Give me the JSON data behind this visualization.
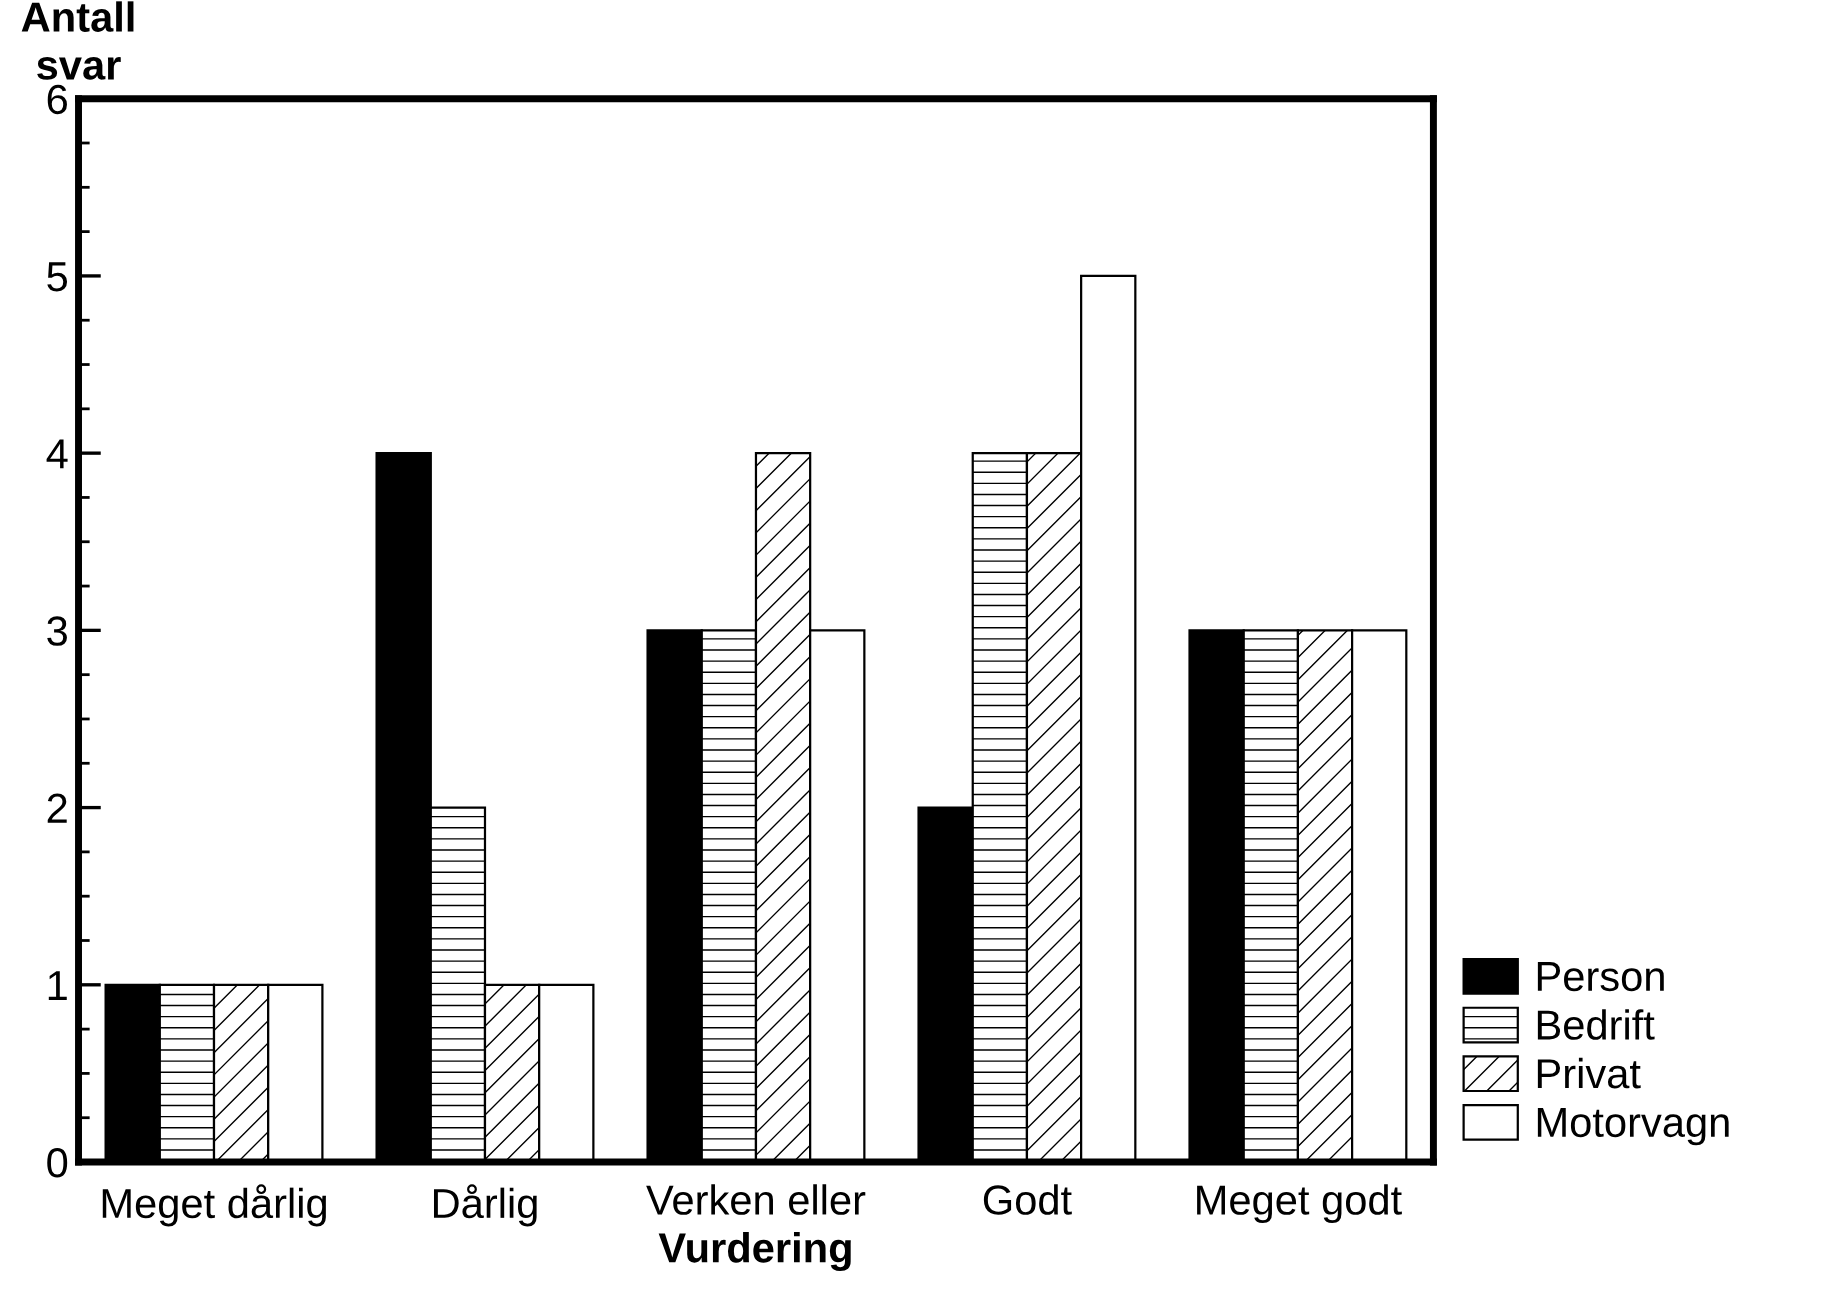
{
  "chart_data": {
    "type": "bar",
    "xlabel": "Vurdering",
    "ylabel": "Antall\nsvar",
    "categories": [
      "Meget dårlig",
      "Dårlig",
      "Verken eller",
      "Godt",
      "Meget godt"
    ],
    "series": [
      {
        "name": "Person",
        "color": "#000000",
        "values": [
          1,
          4,
          3,
          2,
          3
        ]
      },
      {
        "name": "Bedrift",
        "color": "#ffffff",
        "values": [
          1,
          2,
          3,
          4,
          3
        ]
      },
      {
        "name": "Privat",
        "color": "#ffffff",
        "values": [
          1,
          1,
          4,
          4,
          3
        ]
      },
      {
        "name": "Motorvagn",
        "color": "#ffffff",
        "values": [
          1,
          1,
          3,
          5,
          3
        ]
      }
    ],
    "ylim": [
      0,
      6
    ],
    "yticks": [
      0,
      1,
      2,
      3,
      4,
      5,
      6
    ],
    "grid": false,
    "legend": "right"
  }
}
